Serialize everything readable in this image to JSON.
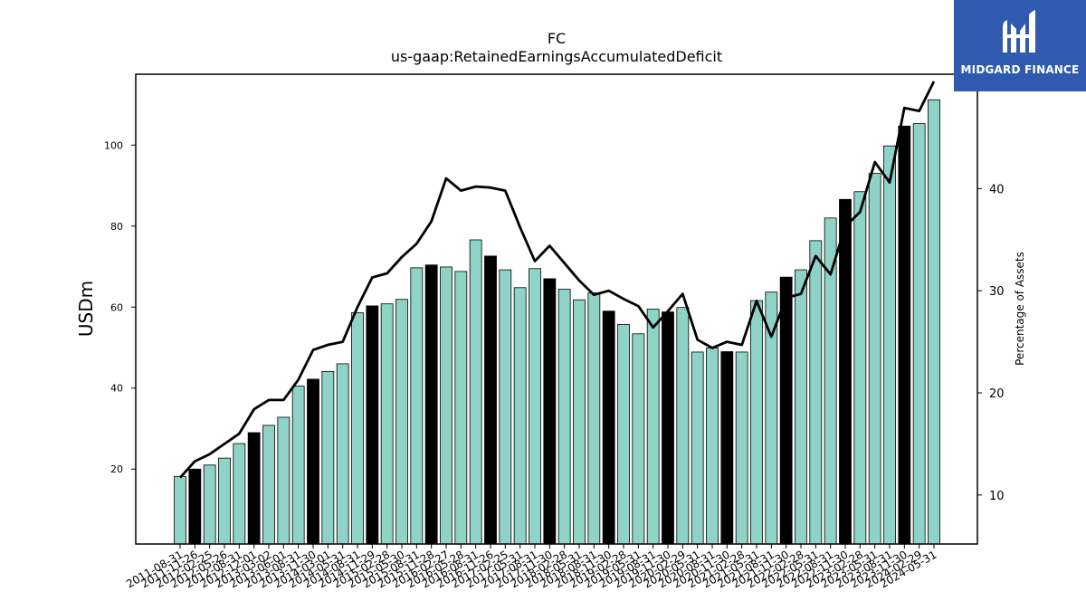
{
  "title": "FC",
  "subtitle": "us-gaap:RetainedEarningsAccumulatedDeficit",
  "logo": {
    "text": "MIDGARD FINANCE",
    "bg_color": "#2f5ab0"
  },
  "chart_data": {
    "type": "bar",
    "title": "FC",
    "subtitle": "us-gaap:RetainedEarningsAccumulatedDeficit",
    "ylabel": "USDm",
    "y2label": "Percentage of Assets",
    "ylim": [
      1.5,
      117.5
    ],
    "y2lim": [
      5.2,
      51.2
    ],
    "yticks": [
      20,
      40,
      60,
      80,
      100
    ],
    "y2ticks": [
      10,
      20,
      30,
      40,
      50
    ],
    "grid": false,
    "bar_color": "#8ed3c5",
    "highlight_color": "#000000",
    "line_color": "#000000",
    "categories": [
      "2011-08-31",
      "2011-11-26",
      "2012-02-25",
      "2012-05-26",
      "2012-08-31",
      "2012-12-01",
      "2013-03-02",
      "2013-06-01",
      "2013-08-31",
      "2013-11-30",
      "2014-03-01",
      "2014-05-31",
      "2014-08-31",
      "2014-11-29",
      "2015-02-28",
      "2015-05-30",
      "2015-08-31",
      "2015-11-28",
      "2016-02-27",
      "2016-05-28",
      "2016-08-31",
      "2016-11-26",
      "2017-02-25",
      "2017-05-31",
      "2017-08-31",
      "2017-11-30",
      "2018-02-28",
      "2018-05-31",
      "2018-08-31",
      "2018-11-30",
      "2019-02-28",
      "2019-05-31",
      "2019-08-31",
      "2019-11-30",
      "2020-02-29",
      "2020-05-31",
      "2020-08-31",
      "2020-11-30",
      "2021-02-28",
      "2021-05-31",
      "2021-08-31",
      "2021-11-30",
      "2022-02-28",
      "2022-05-31",
      "2022-08-31",
      "2022-11-30",
      "2023-02-28",
      "2023-05-31",
      "2023-08-31",
      "2023-11-30",
      "2024-02-29",
      "2024-05-31"
    ],
    "series": [
      {
        "type": "bar",
        "values": [
          18.2,
          20.0,
          21.0,
          22.7,
          26.3,
          29.0,
          30.8,
          32.8,
          40.5,
          42.2,
          44.1,
          46.0,
          58.6,
          60.3,
          60.8,
          61.9,
          69.7,
          70.4,
          69.9,
          68.8,
          76.6,
          72.6,
          69.2,
          64.8,
          69.5,
          67.0,
          64.4,
          61.8,
          63.5,
          59.0,
          55.7,
          53.4,
          59.5,
          58.8,
          59.9,
          48.9,
          49.9,
          49.0,
          48.9,
          61.6,
          63.7,
          67.4,
          69.2,
          76.4,
          82.0,
          86.6,
          88.5,
          93.0,
          99.8,
          104.7,
          105.3,
          111.2
        ]
      },
      {
        "type": "line",
        "axis": "right",
        "values": [
          11.7,
          13.3,
          14.0,
          15.0,
          16.0,
          18.4,
          19.3,
          19.3,
          21.3,
          24.2,
          24.7,
          25.0,
          28.4,
          31.3,
          31.7,
          33.3,
          34.6,
          36.8,
          41.0,
          39.8,
          40.2,
          40.1,
          39.8,
          36.2,
          32.9,
          34.4,
          32.7,
          31.0,
          29.6,
          30.0,
          29.2,
          28.5,
          26.4,
          28.0,
          29.7,
          25.2,
          24.4,
          25.0,
          24.7,
          29.0,
          25.5,
          29.3,
          29.7,
          33.4,
          31.6,
          36.3,
          37.7,
          42.6,
          40.6,
          47.9,
          47.6,
          50.5
        ]
      }
    ]
  }
}
